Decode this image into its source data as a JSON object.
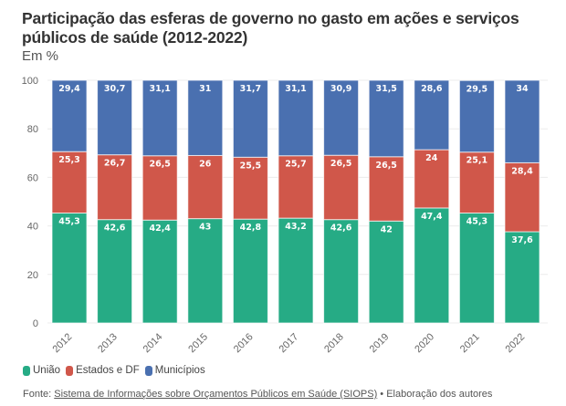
{
  "header": {
    "title": "Participação das esferas de governo no gasto em ações e serviços públicos de saúde (2012-2022)",
    "subtitle": "Em %"
  },
  "chart_data": {
    "type": "bar",
    "stacked": true,
    "title": "Participação das esferas de governo no gasto em ações e serviços públicos de saúde (2012-2022)",
    "subtitle": "Em %",
    "xlabel": "",
    "ylabel": "",
    "ylim": [
      0,
      100
    ],
    "yticks": [
      0,
      20,
      40,
      60,
      80,
      100
    ],
    "grid": true,
    "legend_position": "bottom-left",
    "categories": [
      "2012",
      "2013",
      "2014",
      "2015",
      "2016",
      "2017",
      "2018",
      "2019",
      "2020",
      "2021",
      "2022"
    ],
    "series": [
      {
        "name": "União",
        "color": "#26ab85",
        "values": [
          45.3,
          42.6,
          42.4,
          43,
          42.8,
          43.2,
          42.6,
          42,
          47.4,
          45.3,
          37.6
        ],
        "labels": [
          "45,3",
          "42,6",
          "42,4",
          "43",
          "42,8",
          "43,2",
          "42,6",
          "42",
          "47,4",
          "45,3",
          "37,6"
        ]
      },
      {
        "name": "Estados e DF",
        "color": "#d0574a",
        "values": [
          25.3,
          26.7,
          26.5,
          26,
          25.5,
          25.7,
          26.5,
          26.5,
          24,
          25.1,
          28.4
        ],
        "labels": [
          "25,3",
          "26,7",
          "26,5",
          "26",
          "25,5",
          "25,7",
          "26,5",
          "26,5",
          "24",
          "25,1",
          "28,4"
        ]
      },
      {
        "name": "Municípios",
        "color": "#4a70b0",
        "values": [
          29.4,
          30.7,
          31.1,
          31,
          31.7,
          31.1,
          30.9,
          31.5,
          28.6,
          29.5,
          34
        ],
        "labels": [
          "29,4",
          "30,7",
          "31,1",
          "31",
          "31,7",
          "31,1",
          "30,9",
          "31,5",
          "28,6",
          "29,5",
          "34"
        ]
      }
    ]
  },
  "legend": [
    {
      "label": "União",
      "color": "#26ab85"
    },
    {
      "label": "Estados e DF",
      "color": "#d0574a"
    },
    {
      "label": "Municípios",
      "color": "#4a70b0"
    }
  ],
  "source": {
    "prefix": "Fonte: ",
    "link_text": "Sistema de Informações sobre Orçamentos Públicos em Saúde (SIOPS)",
    "suffix": " • Elaboração dos autores"
  }
}
